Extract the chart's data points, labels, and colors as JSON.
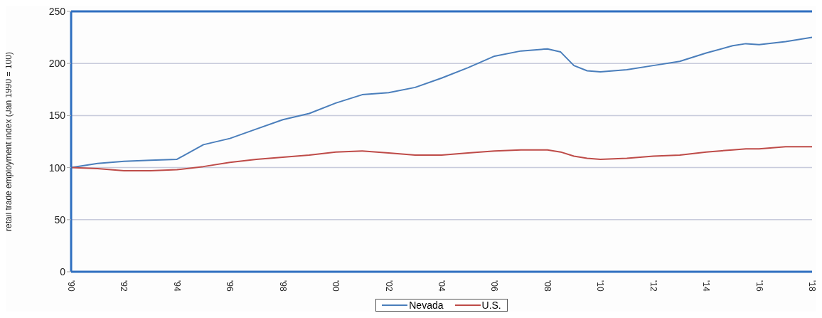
{
  "chart_data": {
    "type": "line",
    "ylabel": "retail trade employment index (Jan 1990 = 100)",
    "xlim": [
      1990,
      2018
    ],
    "xticks": [
      {
        "value": 1990,
        "label": "'90"
      },
      {
        "value": 1992,
        "label": "'92"
      },
      {
        "value": 1994,
        "label": "'94"
      },
      {
        "value": 1996,
        "label": "'96"
      },
      {
        "value": 1998,
        "label": "'98"
      },
      {
        "value": 2000,
        "label": "'00"
      },
      {
        "value": 2002,
        "label": "'02"
      },
      {
        "value": 2004,
        "label": "'04"
      },
      {
        "value": 2006,
        "label": "'06"
      },
      {
        "value": 2008,
        "label": "'08"
      },
      {
        "value": 2010,
        "label": "'10"
      },
      {
        "value": 2012,
        "label": "'12"
      },
      {
        "value": 2014,
        "label": "'14"
      },
      {
        "value": 2016,
        "label": "'16"
      },
      {
        "value": 2018,
        "label": "'18"
      }
    ],
    "ylim": [
      0,
      250
    ],
    "yticks": [
      0,
      50,
      100,
      150,
      200,
      250
    ],
    "x": [
      1990,
      1991,
      1992,
      1993,
      1994,
      1995,
      1996,
      1997,
      1998,
      1999,
      2000,
      2001,
      2002,
      2003,
      2004,
      2005,
      2006,
      2007,
      2008,
      2008.5,
      2009,
      2009.5,
      2010,
      2011,
      2012,
      2013,
      2014,
      2015,
      2015.5,
      2016,
      2017,
      2018
    ],
    "series": [
      {
        "name": "Nevada",
        "color": "#4a7ebb",
        "values": [
          100,
          104,
          106,
          107,
          108,
          122,
          128,
          137,
          146,
          152,
          162,
          170,
          172,
          177,
          186,
          196,
          207,
          212,
          214,
          211,
          198,
          193,
          192,
          194,
          198,
          202,
          210,
          217,
          219,
          218,
          221,
          225
        ]
      },
      {
        "name": "U.S.",
        "color": "#be4b48",
        "values": [
          100,
          99,
          97,
          97,
          98,
          101,
          105,
          108,
          110,
          112,
          115,
          116,
          114,
          112,
          112,
          114,
          116,
          117,
          117,
          115,
          111,
          109,
          108,
          109,
          111,
          112,
          115,
          117,
          118,
          118,
          120,
          120
        ]
      }
    ],
    "grid": "y",
    "legend": "bottom",
    "marker": "none",
    "line_style": "solid"
  }
}
